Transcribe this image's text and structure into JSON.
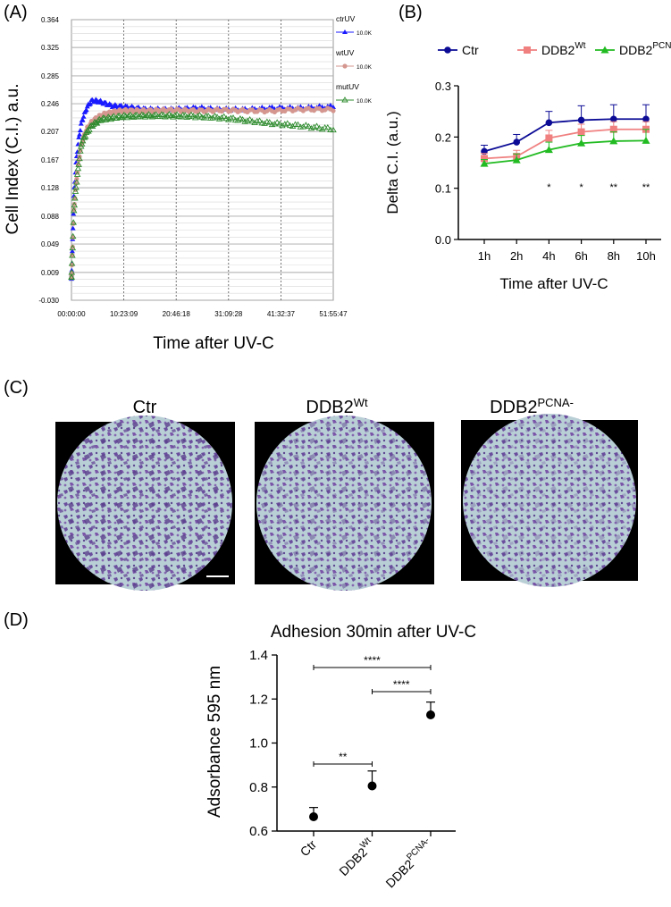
{
  "panels": {
    "a_label": "(A)",
    "b_label": "(B)",
    "c_label": "(C)",
    "d_label": "(D)"
  },
  "chart_data": [
    {
      "id": "A",
      "type": "scatter",
      "ylabel": "Cell Index (C.I.) a.u.",
      "xlabel": "Time after UV-C",
      "x_ticks": [
        "00:00:00",
        "10:23:09",
        "20:46:18",
        "31:09:28",
        "41:32:37",
        "51:55:47"
      ],
      "x_range_hours": [
        0,
        51.93
      ],
      "y_ticks": [
        "-0.030",
        "0.009",
        "0.049",
        "0.088",
        "0.128",
        "0.167",
        "0.207",
        "0.246",
        "0.285",
        "0.325",
        "0.364"
      ],
      "ylim": [
        -0.03,
        0.364
      ],
      "grid": true,
      "legend_position": "right",
      "legend": [
        {
          "name": "ctrUV",
          "sub": "10.0K",
          "color": "#1a1aff",
          "marker": "filled-triangle"
        },
        {
          "name": "wtUV",
          "sub": "10.0K",
          "color": "#d4968f",
          "marker": "filled-circle"
        },
        {
          "name": "mutUV",
          "sub": "10.0K",
          "color": "#2e8b2e",
          "marker": "open-triangle"
        }
      ],
      "series": [
        {
          "name": "ctrUV",
          "x": [
            0,
            0.5,
            1,
            1.5,
            2,
            3,
            4,
            5,
            6,
            8,
            10,
            15,
            20,
            25,
            30,
            35,
            40,
            45,
            51.9
          ],
          "y": [
            0,
            0.12,
            0.17,
            0.2,
            0.22,
            0.24,
            0.25,
            0.25,
            0.248,
            0.243,
            0.242,
            0.238,
            0.238,
            0.24,
            0.238,
            0.238,
            0.24,
            0.24,
            0.242
          ]
        },
        {
          "name": "wtUV",
          "x": [
            0,
            0.5,
            1,
            1.5,
            2,
            3,
            4,
            5,
            6,
            8,
            10,
            15,
            20,
            25,
            30,
            35,
            40,
            45,
            51.9
          ],
          "y": [
            0,
            0.1,
            0.14,
            0.17,
            0.19,
            0.21,
            0.22,
            0.226,
            0.23,
            0.234,
            0.236,
            0.236,
            0.237,
            0.236,
            0.237,
            0.236,
            0.236,
            0.238,
            0.238
          ]
        },
        {
          "name": "mutUV",
          "x": [
            0,
            0.5,
            1,
            1.5,
            2,
            3,
            4,
            5,
            6,
            8,
            10,
            15,
            20,
            25,
            30,
            35,
            40,
            45,
            51.9
          ],
          "y": [
            0,
            0.1,
            0.135,
            0.165,
            0.19,
            0.205,
            0.215,
            0.22,
            0.224,
            0.226,
            0.228,
            0.229,
            0.229,
            0.228,
            0.226,
            0.222,
            0.218,
            0.215,
            0.21
          ]
        }
      ]
    },
    {
      "id": "B",
      "type": "line",
      "ylabel": "Delta C.I. (a.u.)",
      "xlabel": "Time after UV-C",
      "categories": [
        "1h",
        "2h",
        "4h",
        "6h",
        "8h",
        "10h"
      ],
      "ylim": [
        0,
        0.3
      ],
      "y_ticks": [
        "0.0",
        "0.1",
        "0.2",
        "0.3"
      ],
      "legend_position": "top",
      "series": [
        {
          "name": "Ctr",
          "sup": "",
          "color": "#0b0b96",
          "marker": "circle",
          "values": [
            0.172,
            0.19,
            0.228,
            0.233,
            0.235,
            0.235
          ],
          "errors": [
            0.012,
            0.015,
            0.022,
            0.028,
            0.028,
            0.028
          ]
        },
        {
          "name": "DDB2",
          "sup": "Wt",
          "color": "#f08080",
          "marker": "square",
          "values": [
            0.158,
            0.162,
            0.198,
            0.21,
            0.215,
            0.215
          ],
          "errors": [
            0.01,
            0.012,
            0.015,
            0.015,
            0.015,
            0.015
          ]
        },
        {
          "name": "DDB2",
          "sup": "PCNA-",
          "color": "#22bb22",
          "marker": "triangle",
          "values": [
            0.148,
            0.155,
            0.175,
            0.188,
            0.192,
            0.193
          ],
          "errors": [
            0.008,
            0.012,
            0.015,
            0.015,
            0.018,
            0.022
          ]
        }
      ],
      "significance": [
        "",
        "",
        "*",
        "*",
        "**",
        "**"
      ]
    },
    {
      "id": "D",
      "type": "scatter",
      "title": "Adhesion 30min after UV-C",
      "ylabel": "Adsorbance 595 nm",
      "categories": [
        {
          "name": "Ctr",
          "sup": ""
        },
        {
          "name": "DDB2",
          "sup": "Wt"
        },
        {
          "name": "DDB2",
          "sup": "PCNA-"
        }
      ],
      "values": [
        0.665,
        0.805,
        1.128
      ],
      "errors": [
        0.042,
        0.068,
        0.058
      ],
      "ylim": [
        0.6,
        1.4
      ],
      "y_ticks": [
        "0.6",
        "0.8",
        "1.0",
        "1.2",
        "1.4"
      ],
      "brackets": [
        {
          "from": 0,
          "to": 1,
          "label": "**"
        },
        {
          "from": 1,
          "to": 2,
          "label": "****"
        },
        {
          "from": 0,
          "to": 2,
          "label": "****"
        }
      ]
    }
  ],
  "images": {
    "titles": [
      {
        "name": "Ctr",
        "sup": ""
      },
      {
        "name": "DDB2",
        "sup": "Wt"
      },
      {
        "name": "DDB2",
        "sup": "PCNA-"
      }
    ]
  }
}
